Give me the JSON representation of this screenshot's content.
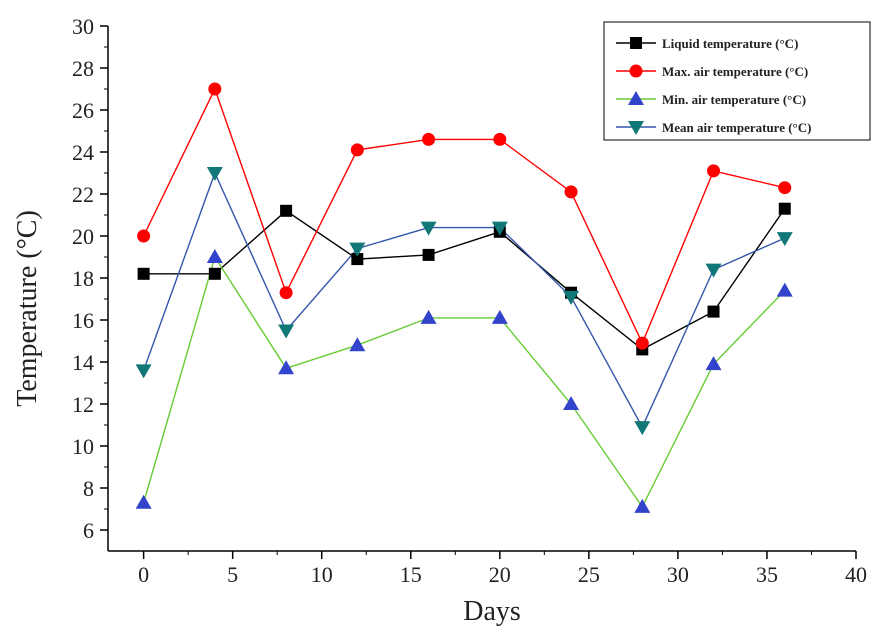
{
  "chart_data": {
    "type": "line",
    "xlabel": "Days",
    "ylabel": "Temperature (°C)",
    "xlim": [
      -2,
      40
    ],
    "ylim": [
      5,
      30
    ],
    "xticks": [
      0,
      5,
      10,
      15,
      20,
      25,
      30,
      35,
      40
    ],
    "yticks": [
      6,
      8,
      10,
      12,
      14,
      16,
      18,
      20,
      22,
      24,
      26,
      28,
      30
    ],
    "grid": false,
    "legend_position": "top-right",
    "x": [
      0,
      4,
      8,
      12,
      16,
      20,
      24,
      28,
      32,
      36
    ],
    "series": [
      {
        "name": "Liquid temperature (°C)",
        "color": "#000000",
        "marker": "square",
        "values": [
          18.2,
          18.2,
          21.2,
          18.9,
          19.1,
          20.2,
          17.3,
          14.6,
          16.4,
          21.3
        ]
      },
      {
        "name": "Max. air temperature (°C)",
        "color": "#ff0000",
        "marker": "circle",
        "values": [
          20.0,
          27.0,
          17.3,
          24.1,
          24.6,
          24.6,
          22.1,
          14.9,
          23.1,
          22.3
        ]
      },
      {
        "name": "Min. air temperature (°C)",
        "color": "#66cc33",
        "marker_color": "#3344cc",
        "marker": "triangle-up",
        "values": [
          7.3,
          19.0,
          13.7,
          14.8,
          16.1,
          16.1,
          12.0,
          7.1,
          13.9,
          17.4
        ]
      },
      {
        "name": "Mean air temperature (°C)",
        "color": "#3355aa",
        "marker_color": "#117777",
        "marker": "triangle-down",
        "values": [
          13.6,
          23.0,
          15.5,
          19.4,
          20.4,
          20.4,
          17.1,
          10.9,
          18.4,
          19.9
        ]
      }
    ]
  }
}
